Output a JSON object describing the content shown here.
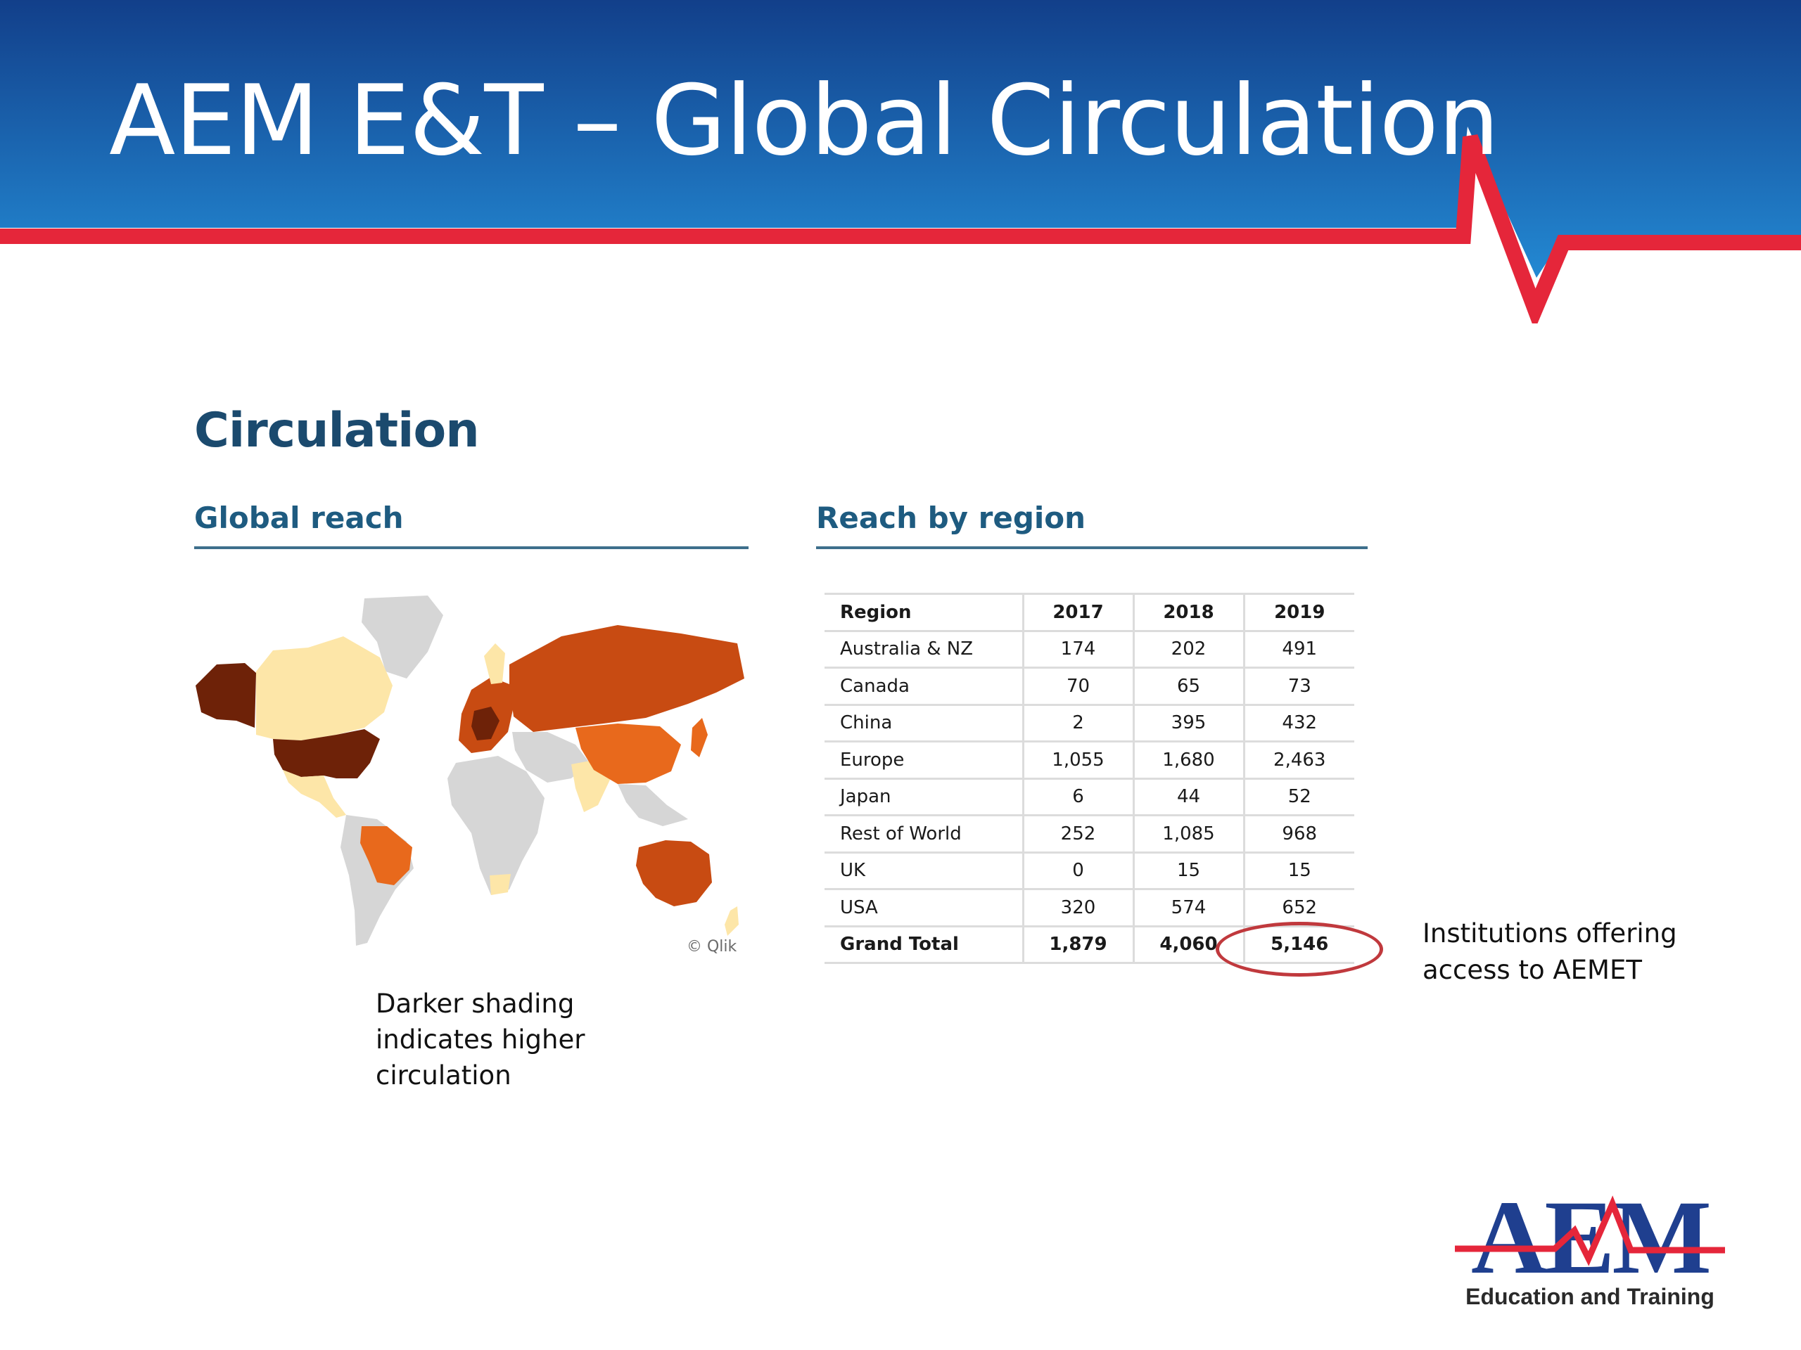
{
  "slide": {
    "title": "AEM E&T – Global Circulation",
    "section_heading": "Circulation",
    "global_reach_heading": "Global reach",
    "reach_by_region_heading": "Reach by region",
    "map_credit": "© Qlik",
    "map_caption": "Darker shading indicates higher circulation",
    "institutions_note": "Institutions offering access to AEMET",
    "logo_tagline": "Education and Training",
    "colors": {
      "banner_blue": "#1a5ea8",
      "banner_red": "#e5263a",
      "heading_teal": "#1b4a6e",
      "map_darkest": "#6e2208",
      "map_dark": "#c84b12",
      "map_medium": "#e8691c",
      "map_light": "#fde6a8",
      "map_none": "#d6d6d6"
    }
  },
  "table": {
    "headers": [
      "Region",
      "2017",
      "2018",
      "2019"
    ],
    "rows": [
      [
        "Australia & NZ",
        "174",
        "202",
        "491"
      ],
      [
        "Canada",
        "70",
        "65",
        "73"
      ],
      [
        "China",
        "2",
        "395",
        "432"
      ],
      [
        "Europe",
        "1,055",
        "1,680",
        "2,463"
      ],
      [
        "Japan",
        "6",
        "44",
        "52"
      ],
      [
        "Rest of World",
        "252",
        "1,085",
        "968"
      ],
      [
        "UK",
        "0",
        "15",
        "15"
      ],
      [
        "USA",
        "320",
        "574",
        "652"
      ]
    ],
    "total": [
      "Grand Total",
      "1,879",
      "4,060",
      "5,146"
    ]
  }
}
